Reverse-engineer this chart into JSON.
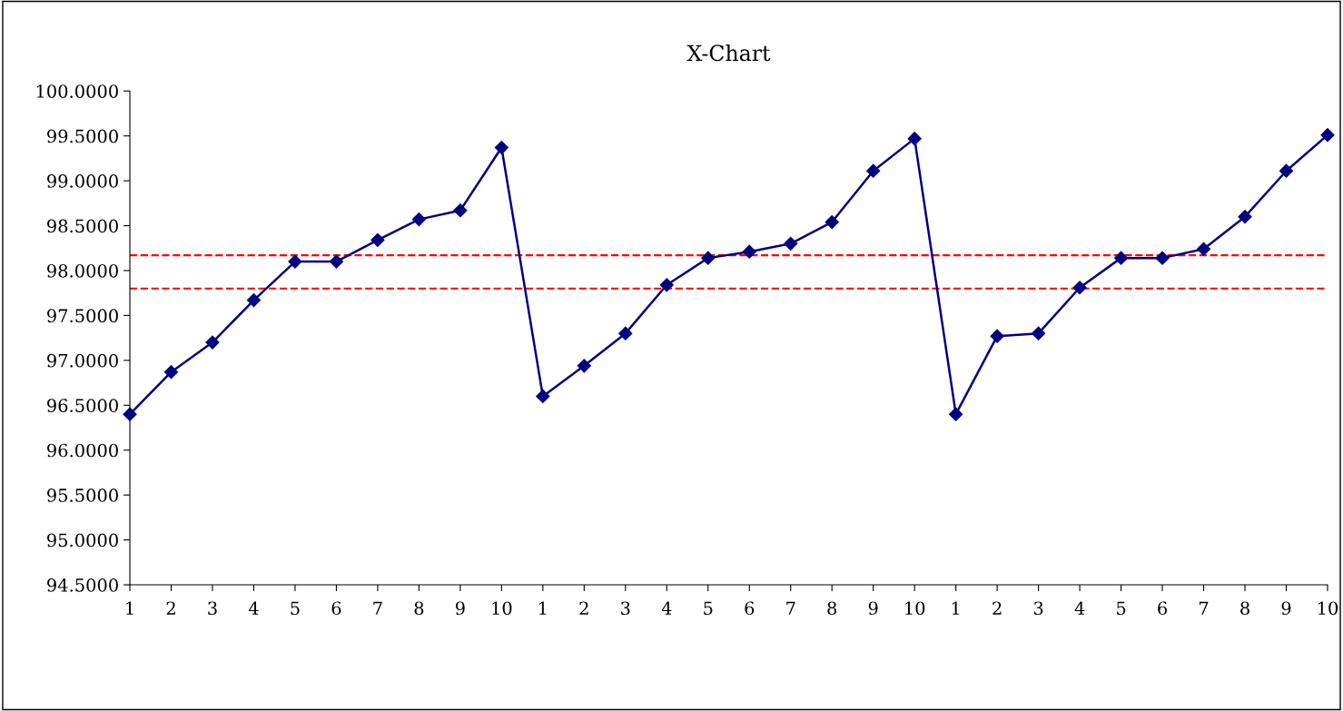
{
  "chart_data": {
    "type": "line",
    "title": "X-Chart",
    "categories": [
      "1",
      "2",
      "3",
      "4",
      "5",
      "6",
      "7",
      "8",
      "9",
      "10",
      "1",
      "2",
      "3",
      "4",
      "5",
      "6",
      "7",
      "8",
      "9",
      "10",
      "1",
      "2",
      "3",
      "4",
      "5",
      "6",
      "7",
      "8",
      "9",
      "10"
    ],
    "series": [
      {
        "color": "#000080",
        "values": [
          96.4,
          96.87,
          97.2,
          97.67,
          98.1,
          98.1,
          98.34,
          98.57,
          98.67,
          99.37,
          96.6,
          96.94,
          97.3,
          97.84,
          98.14,
          98.21,
          98.3,
          98.54,
          99.11,
          99.47,
          96.4,
          97.27,
          97.3,
          97.81,
          98.14,
          98.14,
          98.24,
          98.6,
          99.11,
          99.51
        ]
      }
    ],
    "ylim": [
      94.5,
      100
    ],
    "yticks": [
      {
        "value": 94.5,
        "label": "94.5000"
      },
      {
        "value": 95,
        "label": "95.0000"
      },
      {
        "value": 95.5,
        "label": "95.5000"
      },
      {
        "value": 96,
        "label": "96.0000"
      },
      {
        "value": 96.5,
        "label": "96.5000"
      },
      {
        "value": 97,
        "label": "97.0000"
      },
      {
        "value": 97.5,
        "label": "97.5000"
      },
      {
        "value": 98,
        "label": "98.0000"
      },
      {
        "value": 98.5,
        "label": "98.5000"
      },
      {
        "value": 99,
        "label": "99.0000"
      },
      {
        "value": 99.5,
        "label": "99.5000"
      },
      {
        "value": 100,
        "label": "100.0000"
      }
    ],
    "ref_lines": [
      {
        "axis": "y",
        "value": 98.17,
        "color": "#ff0000",
        "line_style": "dashed"
      },
      {
        "axis": "y",
        "value": 97.8,
        "color": "#ff0000",
        "line_style": "dashed"
      }
    ],
    "marker": "diamond",
    "line_style": "solid",
    "grid": false,
    "legend": false
  }
}
